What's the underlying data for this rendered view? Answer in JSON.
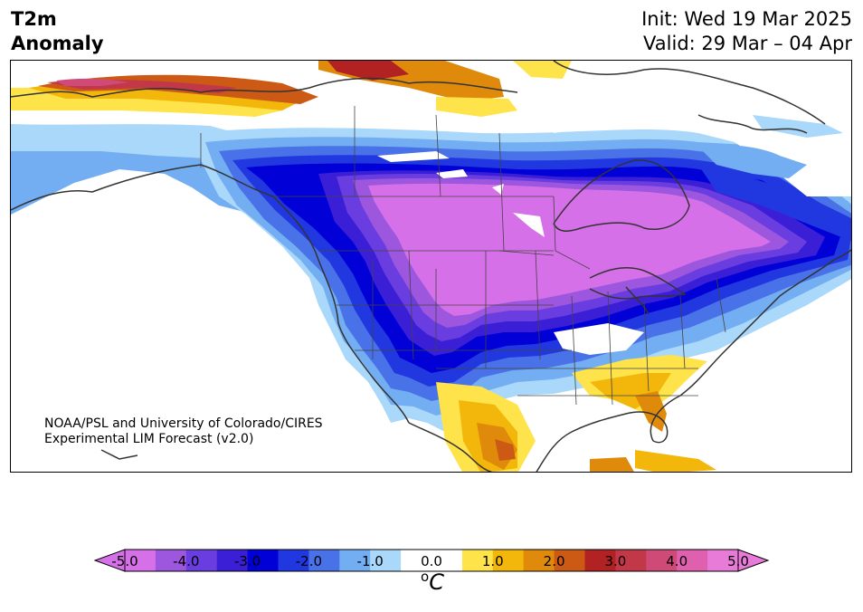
{
  "header": {
    "title_line1": "T2m",
    "title_line2": "Anomaly",
    "init_line": "Init: Wed 19 Mar 2025",
    "valid_line": "Valid: 29 Mar – 04 Apr"
  },
  "credit": {
    "line1": "NOAA/PSL and University of Colorado/CIRES",
    "line2": "Experimental LIM Forecast (v2.0)"
  },
  "colorbar": {
    "tick_labels": [
      "-5.0",
      "-4.0",
      "-3.0",
      "-2.0",
      "-1.0",
      "0.0",
      "1.0",
      "2.0",
      "3.0",
      "4.0",
      "5.0"
    ],
    "unit_base": "C",
    "unit_sup": "o",
    "min": -5.0,
    "max": 5.0,
    "step": 0.5,
    "colors": [
      "#d670e8",
      "#9d56de",
      "#6a3de0",
      "#3b1fd6",
      "#0000d7",
      "#2137e0",
      "#4a72e8",
      "#74aef2",
      "#aad8fb",
      "#ffffff",
      "#ffffff",
      "#ffe34a",
      "#f2b70a",
      "#e08a0c",
      "#cc5a14",
      "#b22222",
      "#c23848",
      "#d04a78",
      "#e060b0",
      "#e87bd8"
    ],
    "extend_low_color": "#d670e8",
    "extend_high_color": "#e87bd8"
  },
  "map": {
    "region": "North America",
    "variable": "2m temperature anomaly"
  }
}
